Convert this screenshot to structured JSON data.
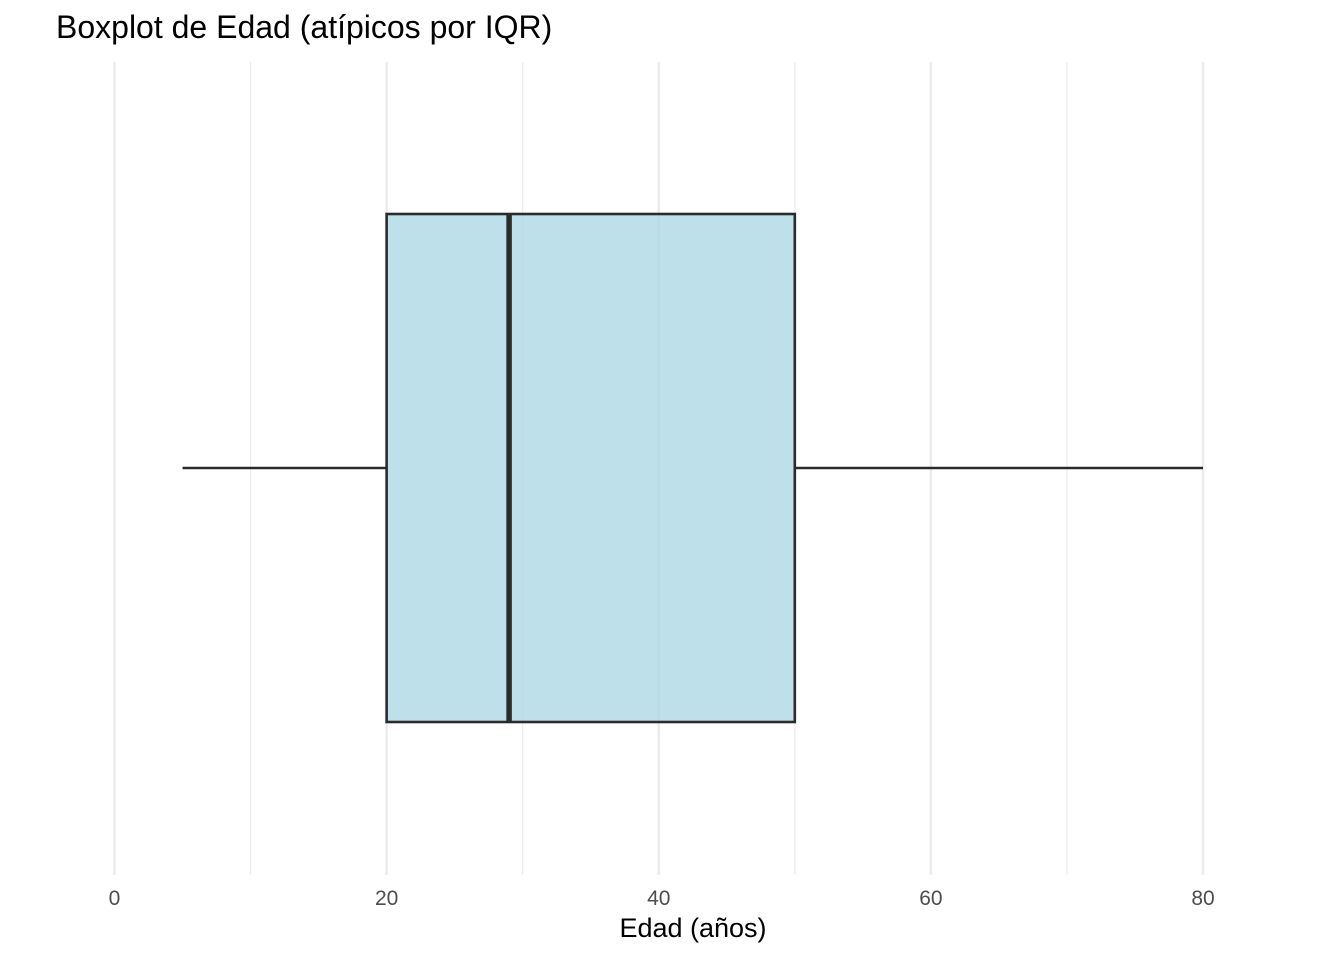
{
  "chart_data": {
    "type": "boxplot",
    "title": "Boxplot de Edad (atípicos por IQR)",
    "xlabel": "Edad (años)",
    "ylabel": "",
    "xlim": [
      0,
      80
    ],
    "major_ticks": [
      0,
      20,
      40,
      60,
      80
    ],
    "tick_labels": [
      "0",
      "20",
      "40",
      "60",
      "80"
    ],
    "minor_gridlines": [
      10,
      30,
      50,
      70
    ],
    "grid": true,
    "orientation": "horizontal",
    "series": [
      {
        "whisker_low": 5,
        "q1": 20,
        "median": 29,
        "q3": 50,
        "whisker_high": 80,
        "outliers": []
      }
    ],
    "colors": {
      "box_fill": "#add8e6",
      "box_stroke": "#2b2b2b",
      "gridline": "#ebebeb"
    }
  }
}
